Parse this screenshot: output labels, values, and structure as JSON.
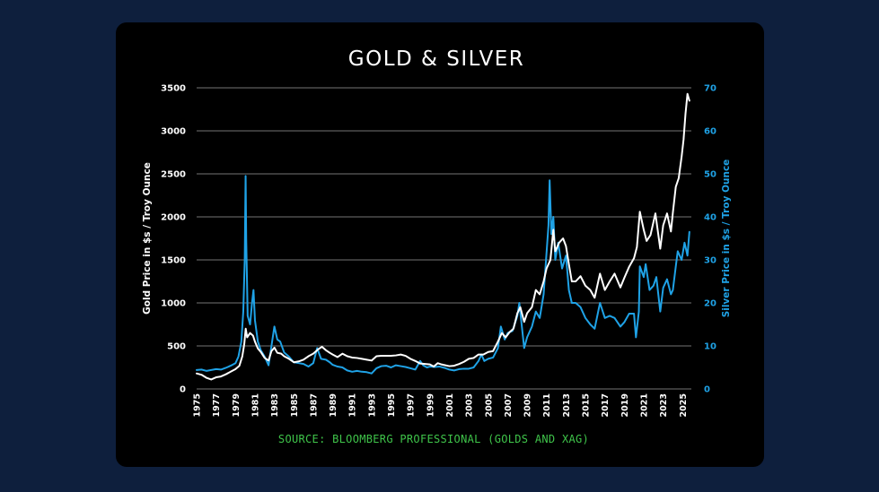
{
  "chart_data": {
    "type": "line",
    "title": "GOLD & SILVER",
    "ylabel_left": "Gold Price in $s / Troy Ounce",
    "ylabel_right": "Silver Price in $s / Troy Ounce",
    "source": "SOURCE: BLOOMBERG PROFESSIONAL (GOLDS AND XAG)",
    "xlim": [
      1975,
      2025.9
    ],
    "ylim_left": [
      0,
      3500
    ],
    "ylim_right": [
      0,
      70
    ],
    "x_ticks": [
      "1975",
      "1977",
      "1979",
      "1981",
      "1983",
      "1985",
      "1987",
      "1989",
      "1991",
      "1993",
      "1995",
      "1997",
      "1999",
      "2001",
      "2003",
      "2005",
      "2007",
      "2009",
      "2011",
      "2013",
      "2015",
      "2017",
      "2019",
      "2021",
      "2023",
      "2025"
    ],
    "y_ticks_left": [
      0,
      500,
      1000,
      1500,
      2000,
      2500,
      3000,
      3500
    ],
    "y_ticks_right": [
      0,
      10,
      20,
      30,
      40,
      50,
      60,
      70
    ],
    "grid": true,
    "series": [
      {
        "name": "",
        "axis": "left",
        "color": "#ffffff",
        "points": [
          [
            1975.0,
            180
          ],
          [
            1975.5,
            165
          ],
          [
            1976.0,
            130
          ],
          [
            1976.5,
            110
          ],
          [
            1977.0,
            135
          ],
          [
            1977.5,
            145
          ],
          [
            1978.0,
            170
          ],
          [
            1978.5,
            200
          ],
          [
            1979.0,
            230
          ],
          [
            1979.4,
            270
          ],
          [
            1979.7,
            380
          ],
          [
            1979.9,
            520
          ],
          [
            1980.05,
            700
          ],
          [
            1980.2,
            600
          ],
          [
            1980.5,
            650
          ],
          [
            1980.8,
            620
          ],
          [
            1981.0,
            550
          ],
          [
            1981.3,
            470
          ],
          [
            1981.6,
            430
          ],
          [
            1982.0,
            360
          ],
          [
            1982.4,
            330
          ],
          [
            1982.7,
            440
          ],
          [
            1983.0,
            480
          ],
          [
            1983.3,
            420
          ],
          [
            1983.7,
            410
          ],
          [
            1984.0,
            380
          ],
          [
            1984.5,
            350
          ],
          [
            1985.0,
            310
          ],
          [
            1985.5,
            320
          ],
          [
            1986.0,
            340
          ],
          [
            1986.5,
            380
          ],
          [
            1987.0,
            410
          ],
          [
            1987.5,
            460
          ],
          [
            1987.9,
            490
          ],
          [
            1988.3,
            450
          ],
          [
            1988.7,
            420
          ],
          [
            1989.0,
            400
          ],
          [
            1989.5,
            370
          ],
          [
            1990.0,
            410
          ],
          [
            1990.5,
            380
          ],
          [
            1991.0,
            365
          ],
          [
            1991.5,
            360
          ],
          [
            1992.0,
            350
          ],
          [
            1992.5,
            340
          ],
          [
            1993.0,
            330
          ],
          [
            1993.5,
            380
          ],
          [
            1994.0,
            385
          ],
          [
            1994.5,
            385
          ],
          [
            1995.0,
            385
          ],
          [
            1995.5,
            390
          ],
          [
            1996.0,
            400
          ],
          [
            1996.5,
            385
          ],
          [
            1997.0,
            350
          ],
          [
            1997.5,
            325
          ],
          [
            1998.0,
            295
          ],
          [
            1998.5,
            290
          ],
          [
            1999.0,
            285
          ],
          [
            1999.4,
            260
          ],
          [
            1999.8,
            300
          ],
          [
            2000.2,
            285
          ],
          [
            2000.6,
            275
          ],
          [
            2001.0,
            265
          ],
          [
            2001.5,
            270
          ],
          [
            2002.0,
            290
          ],
          [
            2002.5,
            315
          ],
          [
            2003.0,
            350
          ],
          [
            2003.5,
            360
          ],
          [
            2004.0,
            400
          ],
          [
            2004.5,
            400
          ],
          [
            2005.0,
            430
          ],
          [
            2005.5,
            440
          ],
          [
            2006.0,
            550
          ],
          [
            2006.4,
            650
          ],
          [
            2006.8,
            600
          ],
          [
            2007.2,
            660
          ],
          [
            2007.6,
            700
          ],
          [
            2008.0,
            880
          ],
          [
            2008.3,
            950
          ],
          [
            2008.7,
            780
          ],
          [
            2009.0,
            880
          ],
          [
            2009.5,
            950
          ],
          [
            2009.9,
            1150
          ],
          [
            2010.3,
            1100
          ],
          [
            2010.7,
            1250
          ],
          [
            2011.0,
            1400
          ],
          [
            2011.4,
            1500
          ],
          [
            2011.7,
            1850
          ],
          [
            2011.9,
            1600
          ],
          [
            2012.3,
            1700
          ],
          [
            2012.7,
            1750
          ],
          [
            2013.0,
            1660
          ],
          [
            2013.3,
            1450
          ],
          [
            2013.6,
            1250
          ],
          [
            2014.0,
            1250
          ],
          [
            2014.5,
            1310
          ],
          [
            2015.0,
            1200
          ],
          [
            2015.5,
            1150
          ],
          [
            2015.95,
            1060
          ],
          [
            2016.5,
            1340
          ],
          [
            2017.0,
            1150
          ],
          [
            2017.5,
            1250
          ],
          [
            2018.0,
            1340
          ],
          [
            2018.6,
            1180
          ],
          [
            2019.0,
            1290
          ],
          [
            2019.5,
            1420
          ],
          [
            2020.0,
            1520
          ],
          [
            2020.3,
            1650
          ],
          [
            2020.6,
            2060
          ],
          [
            2021.0,
            1850
          ],
          [
            2021.3,
            1720
          ],
          [
            2021.7,
            1790
          ],
          [
            2022.2,
            2040
          ],
          [
            2022.7,
            1630
          ],
          [
            2023.0,
            1900
          ],
          [
            2023.4,
            2040
          ],
          [
            2023.8,
            1830
          ],
          [
            2024.0,
            2050
          ],
          [
            2024.3,
            2350
          ],
          [
            2024.6,
            2450
          ],
          [
            2024.9,
            2700
          ],
          [
            2025.1,
            2900
          ],
          [
            2025.3,
            3200
          ],
          [
            2025.5,
            3430
          ],
          [
            2025.7,
            3350
          ]
        ]
      },
      {
        "name": "",
        "axis": "right",
        "color": "#1fa2e6",
        "points": [
          [
            1975.0,
            4.4
          ],
          [
            1975.5,
            4.5
          ],
          [
            1976.0,
            4.2
          ],
          [
            1976.5,
            4.4
          ],
          [
            1977.0,
            4.6
          ],
          [
            1977.5,
            4.5
          ],
          [
            1978.0,
            4.9
          ],
          [
            1978.5,
            5.4
          ],
          [
            1979.0,
            6.0
          ],
          [
            1979.3,
            7.5
          ],
          [
            1979.6,
            11
          ],
          [
            1979.8,
            18
          ],
          [
            1979.95,
            30
          ],
          [
            1980.04,
            49.5
          ],
          [
            1980.1,
            35
          ],
          [
            1980.25,
            17
          ],
          [
            1980.5,
            15
          ],
          [
            1980.7,
            20
          ],
          [
            1980.85,
            23
          ],
          [
            1981.0,
            16
          ],
          [
            1981.3,
            11
          ],
          [
            1981.6,
            9
          ],
          [
            1982.0,
            7.5
          ],
          [
            1982.4,
            5.5
          ],
          [
            1982.7,
            10
          ],
          [
            1983.0,
            14.5
          ],
          [
            1983.3,
            11.5
          ],
          [
            1983.6,
            11
          ],
          [
            1984.0,
            8.5
          ],
          [
            1984.5,
            7.5
          ],
          [
            1985.0,
            6.2
          ],
          [
            1985.5,
            6.0
          ],
          [
            1986.0,
            5.8
          ],
          [
            1986.5,
            5.2
          ],
          [
            1987.0,
            6.0
          ],
          [
            1987.4,
            9.5
          ],
          [
            1987.8,
            7.0
          ],
          [
            1988.3,
            6.8
          ],
          [
            1988.7,
            6.2
          ],
          [
            1989.0,
            5.6
          ],
          [
            1989.5,
            5.2
          ],
          [
            1990.0,
            5.0
          ],
          [
            1990.5,
            4.3
          ],
          [
            1991.0,
            4.0
          ],
          [
            1991.5,
            4.2
          ],
          [
            1992.0,
            4.0
          ],
          [
            1992.5,
            3.9
          ],
          [
            1993.0,
            3.6
          ],
          [
            1993.5,
            4.8
          ],
          [
            1994.0,
            5.3
          ],
          [
            1994.5,
            5.4
          ],
          [
            1995.0,
            5.0
          ],
          [
            1995.5,
            5.5
          ],
          [
            1996.0,
            5.3
          ],
          [
            1996.5,
            5.1
          ],
          [
            1997.0,
            4.8
          ],
          [
            1997.5,
            4.5
          ],
          [
            1998.0,
            6.5
          ],
          [
            1998.3,
            5.5
          ],
          [
            1998.7,
            5.0
          ],
          [
            1999.0,
            5.2
          ],
          [
            1999.5,
            5.1
          ],
          [
            2000.0,
            5.2
          ],
          [
            2000.5,
            4.9
          ],
          [
            2001.0,
            4.5
          ],
          [
            2001.5,
            4.3
          ],
          [
            2002.0,
            4.6
          ],
          [
            2002.5,
            4.7
          ],
          [
            2003.0,
            4.7
          ],
          [
            2003.5,
            5.0
          ],
          [
            2004.0,
            6.5
          ],
          [
            2004.3,
            8.0
          ],
          [
            2004.6,
            6.5
          ],
          [
            2005.0,
            7.0
          ],
          [
            2005.5,
            7.3
          ],
          [
            2006.0,
            9.5
          ],
          [
            2006.3,
            14.5
          ],
          [
            2006.7,
            11.5
          ],
          [
            2007.0,
            13.0
          ],
          [
            2007.5,
            13.5
          ],
          [
            2008.0,
            17.0
          ],
          [
            2008.2,
            20.0
          ],
          [
            2008.7,
            9.5
          ],
          [
            2009.0,
            12.0
          ],
          [
            2009.5,
            14.5
          ],
          [
            2009.9,
            18.0
          ],
          [
            2010.3,
            16.5
          ],
          [
            2010.7,
            22.0
          ],
          [
            2010.95,
            30.0
          ],
          [
            2011.2,
            38.0
          ],
          [
            2011.32,
            48.5
          ],
          [
            2011.5,
            36.0
          ],
          [
            2011.7,
            40.0
          ],
          [
            2011.9,
            30.0
          ],
          [
            2012.2,
            34.0
          ],
          [
            2012.6,
            28.0
          ],
          [
            2013.0,
            31.0
          ],
          [
            2013.3,
            23.0
          ],
          [
            2013.6,
            20.0
          ],
          [
            2014.0,
            20.0
          ],
          [
            2014.5,
            19.0
          ],
          [
            2015.0,
            16.5
          ],
          [
            2015.5,
            15.0
          ],
          [
            2015.95,
            14.0
          ],
          [
            2016.5,
            20.0
          ],
          [
            2017.0,
            16.5
          ],
          [
            2017.5,
            17.0
          ],
          [
            2018.0,
            16.5
          ],
          [
            2018.6,
            14.5
          ],
          [
            2019.0,
            15.5
          ],
          [
            2019.5,
            17.5
          ],
          [
            2020.0,
            17.5
          ],
          [
            2020.2,
            12.0
          ],
          [
            2020.5,
            18.0
          ],
          [
            2020.6,
            28.5
          ],
          [
            2021.0,
            26.0
          ],
          [
            2021.2,
            29.0
          ],
          [
            2021.6,
            23.0
          ],
          [
            2022.0,
            24.0
          ],
          [
            2022.3,
            26.0
          ],
          [
            2022.7,
            18.0
          ],
          [
            2023.0,
            23.5
          ],
          [
            2023.4,
            25.5
          ],
          [
            2023.8,
            22.0
          ],
          [
            2024.0,
            23.0
          ],
          [
            2024.3,
            28.5
          ],
          [
            2024.5,
            32.0
          ],
          [
            2024.9,
            30.0
          ],
          [
            2025.2,
            34.0
          ],
          [
            2025.5,
            31.0
          ],
          [
            2025.7,
            36.5
          ]
        ]
      }
    ]
  },
  "colors": {
    "page_bg": "#0e1f3d",
    "card_bg": "#000000",
    "gold_line": "#ffffff",
    "silver_line": "#1fa2e6",
    "right_axis": "#1fa2e6",
    "source_text": "#3fc44a",
    "grid": "#9a9a9a"
  }
}
